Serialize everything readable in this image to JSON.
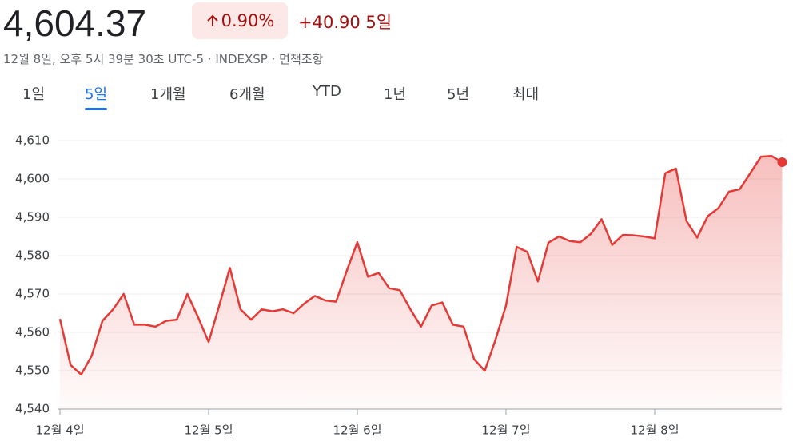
{
  "header": {
    "price": "4,604.37",
    "change_percent": "0.90%",
    "change_abs": "+40.90 5일",
    "subtitle": "12월 8일, 오후 5시 39분 30초 UTC-5 · INDEXSP · 면책조항"
  },
  "tabs": [
    "1일",
    "5일",
    "1개월",
    "6개월",
    "YTD",
    "1년",
    "5년",
    "최대"
  ],
  "active_tab": 1,
  "chart_data": {
    "type": "line",
    "color": "#e53935",
    "grid": true,
    "categories": [
      "12월 4일",
      null,
      null,
      null,
      null,
      null,
      null,
      null,
      null,
      null,
      null,
      null,
      null,
      null,
      "12월 5일",
      null,
      null,
      null,
      null,
      null,
      null,
      null,
      null,
      null,
      null,
      null,
      null,
      null,
      "12월 6일",
      null,
      null,
      null,
      null,
      null,
      null,
      null,
      null,
      null,
      null,
      null,
      null,
      null,
      "12월 7일",
      null,
      null,
      null,
      null,
      null,
      null,
      null,
      null,
      null,
      null,
      null,
      null,
      null,
      "12월 8일",
      null,
      null,
      null,
      null,
      null,
      null,
      null,
      null,
      null,
      null,
      null,
      null
    ],
    "values": [
      4563.5,
      4551.5,
      4549,
      4554,
      4563,
      4566,
      4570,
      4562,
      4562,
      4561.5,
      4563,
      4563.3,
      4570,
      4564,
      4557.5,
      4567,
      4576.8,
      4566,
      4563.3,
      4566,
      4565.5,
      4566,
      4565,
      4567.5,
      4569.5,
      4568.3,
      4568,
      4576,
      4583.5,
      4574.5,
      4575.5,
      4571.5,
      4571,
      4566,
      4561.5,
      4567,
      4567.8,
      4562,
      4561.5,
      4553,
      4550,
      4558,
      4567,
      4582.3,
      4581,
      4573.3,
      4583.4,
      4585,
      4583.8,
      4583.5,
      4585.7,
      4589.5,
      4582.8,
      4585.4,
      4585.3,
      4585,
      4584.5,
      4601.5,
      4602.7,
      4589,
      4584.7,
      4590.3,
      4592.4,
      4596.7,
      4597.3,
      4601.5,
      4605.8,
      4606,
      4604.37
    ],
    "ylim": [
      4540,
      4610
    ],
    "yticks": [
      {
        "value": 4540,
        "label": "4,540"
      },
      {
        "value": 4550,
        "label": "4,550"
      },
      {
        "value": 4560,
        "label": "4,560"
      },
      {
        "value": 4570,
        "label": "4,570"
      },
      {
        "value": 4580,
        "label": "4,580"
      },
      {
        "value": 4590,
        "label": "4,590"
      },
      {
        "value": 4600,
        "label": "4,600"
      },
      {
        "value": 4610,
        "label": "4,610"
      }
    ]
  }
}
